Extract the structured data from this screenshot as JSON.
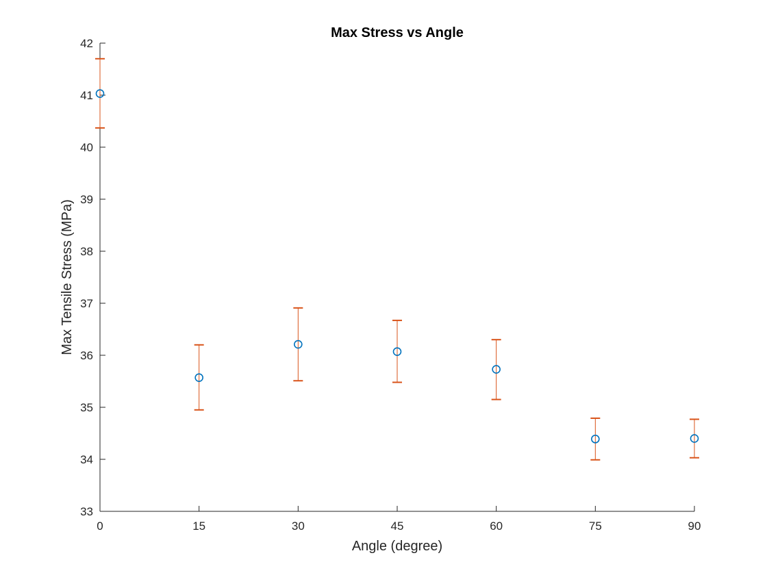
{
  "chart_data": {
    "type": "scatter",
    "title": "Max Stress vs Angle",
    "xlabel": "Angle (degree)",
    "ylabel": "Max Tensile Stress (MPa)",
    "xlim": [
      0,
      90
    ],
    "ylim": [
      33,
      42
    ],
    "xticks": [
      0,
      15,
      30,
      45,
      60,
      75,
      90
    ],
    "yticks": [
      33,
      34,
      35,
      36,
      37,
      38,
      39,
      40,
      41,
      42
    ],
    "grid": false,
    "series": [
      {
        "x": [
          0,
          15,
          30,
          45,
          60,
          75,
          90
        ],
        "y": [
          41.03,
          35.57,
          36.21,
          36.07,
          35.73,
          34.39,
          34.4
        ],
        "error_low": [
          40.37,
          34.95,
          35.51,
          35.48,
          35.15,
          33.99,
          34.03
        ],
        "error_high": [
          41.7,
          36.2,
          36.91,
          36.67,
          36.3,
          34.79,
          34.77
        ],
        "marker": "circle"
      }
    ],
    "colors": {
      "marker": "#0072BD",
      "errorbar": "#D95319",
      "axis": "#262626"
    }
  }
}
